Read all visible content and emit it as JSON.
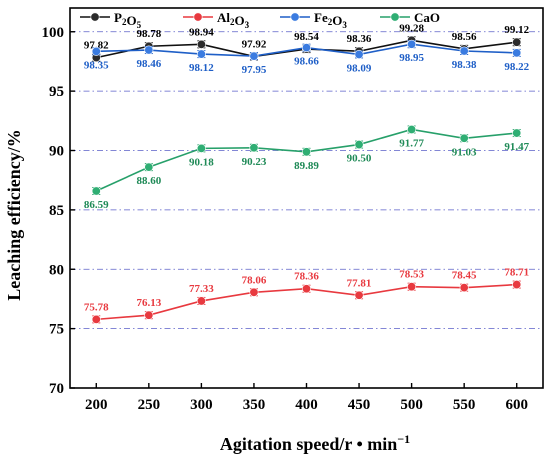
{
  "chart_data": {
    "type": "line",
    "xlabel": "Agitation speed/r • min",
    "xlabel_sup": "−1",
    "ylabel": "Leaching efficiency/%",
    "x": [
      200,
      250,
      300,
      350,
      400,
      450,
      500,
      550,
      600
    ],
    "xlim": [
      175,
      625
    ],
    "ylim": [
      70,
      102
    ],
    "yticks": [
      70,
      75,
      80,
      85,
      90,
      95,
      100
    ],
    "grid": "horizontal dash-dot",
    "legend_position": "top",
    "series": [
      {
        "name": "P2O5",
        "name_main": "P",
        "name_parts": [
          {
            "t": "P",
            "sub": false
          },
          {
            "t": "2",
            "sub": true
          },
          {
            "t": "O",
            "sub": false
          },
          {
            "t": "5",
            "sub": true
          }
        ],
        "color": "#111111",
        "marker_fill": "#2b2b2b",
        "label_color": "#000000",
        "label_pos": "above",
        "values": [
          97.82,
          98.78,
          98.94,
          97.92,
          98.54,
          98.36,
          99.28,
          98.56,
          99.12
        ],
        "labels": [
          "97.82",
          "98.78",
          "98.94",
          "97.92",
          "98.54",
          "98.36",
          "99.28",
          "98.56",
          "99.12"
        ]
      },
      {
        "name": "Al2O3",
        "name_parts": [
          {
            "t": "Al",
            "sub": false
          },
          {
            "t": "2",
            "sub": true
          },
          {
            "t": "O",
            "sub": false
          },
          {
            "t": "3",
            "sub": true
          }
        ],
        "color": "#e8393f",
        "marker_fill": "#e8393f",
        "label_color": "#e8393f",
        "label_pos": "above",
        "values": [
          75.78,
          76.13,
          77.33,
          78.06,
          78.36,
          77.81,
          78.53,
          78.45,
          78.71
        ],
        "labels": [
          "75.78",
          "76.13",
          "77.33",
          "78.06",
          "78.36",
          "77.81",
          "78.53",
          "78.45",
          "78.71"
        ]
      },
      {
        "name": "Fe2O3",
        "name_parts": [
          {
            "t": "Fe",
            "sub": false
          },
          {
            "t": "2",
            "sub": true
          },
          {
            "t": "O",
            "sub": false
          },
          {
            "t": "3",
            "sub": true
          }
        ],
        "color": "#1f5fc7",
        "marker_fill": "#3a7be0",
        "label_color": "#1f5fc7",
        "label_pos": "below",
        "values": [
          98.35,
          98.46,
          98.12,
          97.95,
          98.66,
          98.09,
          98.95,
          98.38,
          98.22
        ],
        "labels": [
          "98.35",
          "98.46",
          "98.12",
          "97.95",
          "98.66",
          "98.09",
          "98.95",
          "98.38",
          "98.22"
        ]
      },
      {
        "name": "CaO",
        "name_parts": [
          {
            "t": "CaO",
            "sub": false
          }
        ],
        "color": "#27a06a",
        "marker_fill": "#2fae73",
        "label_color": "#1f8a57",
        "label_pos": "below",
        "values": [
          86.59,
          88.6,
          90.18,
          90.23,
          89.89,
          90.5,
          91.77,
          91.03,
          91.47
        ],
        "labels": [
          "86.59",
          "88.60",
          "90.18",
          "90.23",
          "89.89",
          "90.50",
          "91.77",
          "91.03",
          "91.47"
        ]
      }
    ]
  }
}
